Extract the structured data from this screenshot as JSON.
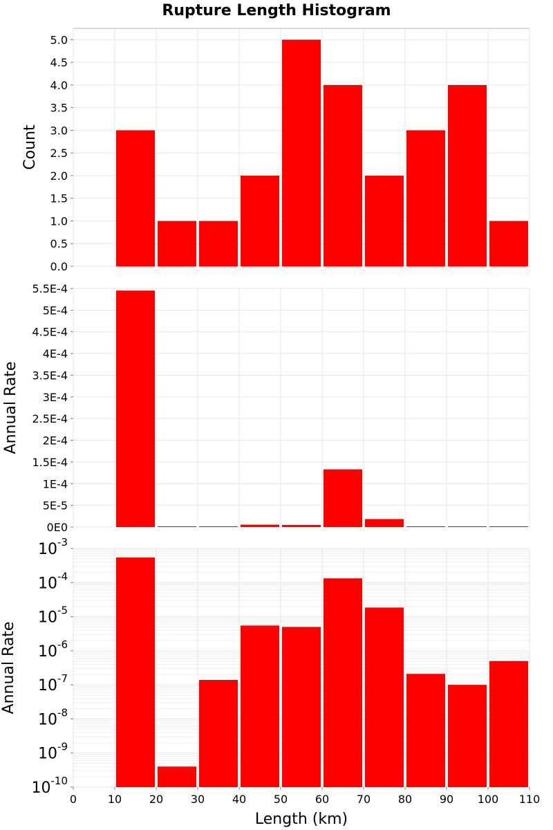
{
  "chart_data": {
    "type": "bar",
    "title": "Rupture Length Histogram",
    "xlabel": "Length (km)",
    "xlim": [
      0,
      110
    ],
    "x_ticks": [
      0,
      10,
      20,
      30,
      40,
      50,
      60,
      70,
      80,
      90,
      100,
      110
    ],
    "categories": [
      "10-20",
      "20-30",
      "30-40",
      "40-50",
      "50-60",
      "60-70",
      "70-80",
      "80-90",
      "90-100",
      "100-110"
    ],
    "bin_starts": [
      10,
      20,
      30,
      40,
      50,
      60,
      70,
      80,
      90,
      100
    ],
    "bin_width": 10,
    "bar_color": "#ff0000",
    "panels": [
      {
        "name": "count",
        "ylabel": "Count",
        "scale": "linear",
        "ylim": [
          0,
          5.25
        ],
        "y_ticks": [
          {
            "value": 0.0,
            "label": "0.0"
          },
          {
            "value": 0.5,
            "label": "0.5"
          },
          {
            "value": 1.0,
            "label": "1.0"
          },
          {
            "value": 1.5,
            "label": "1.5"
          },
          {
            "value": 2.0,
            "label": "2.0"
          },
          {
            "value": 2.5,
            "label": "2.5"
          },
          {
            "value": 3.0,
            "label": "3.0"
          },
          {
            "value": 3.5,
            "label": "3.5"
          },
          {
            "value": 4.0,
            "label": "4.0"
          },
          {
            "value": 4.5,
            "label": "4.5"
          },
          {
            "value": 5.0,
            "label": "5.0"
          }
        ],
        "values": [
          3,
          1,
          1,
          2,
          5,
          4,
          2,
          3,
          4,
          1
        ]
      },
      {
        "name": "rate-linear",
        "ylabel": "Annual Rate",
        "scale": "linear",
        "ylim": [
          0,
          0.00055
        ],
        "y_ticks": [
          {
            "value": 0,
            "label": "0E0"
          },
          {
            "value": 5e-05,
            "label": "5E-5"
          },
          {
            "value": 0.0001,
            "label": "1E-4"
          },
          {
            "value": 0.00015,
            "label": "1.5E-4"
          },
          {
            "value": 0.0002,
            "label": "2E-4"
          },
          {
            "value": 0.00025,
            "label": "2.5E-4"
          },
          {
            "value": 0.0003,
            "label": "3E-4"
          },
          {
            "value": 0.00035,
            "label": "3.5E-4"
          },
          {
            "value": 0.0004,
            "label": "4E-4"
          },
          {
            "value": 0.00045,
            "label": "4.5E-4"
          },
          {
            "value": 0.0005,
            "label": "5E-4"
          },
          {
            "value": 0.00055,
            "label": "5.5E-4"
          }
        ],
        "values": [
          0.000545,
          4e-10,
          1.4e-07,
          5.5e-06,
          5e-06,
          0.000133,
          1.85e-05,
          2.1e-07,
          1e-07,
          5e-07
        ]
      },
      {
        "name": "rate-log",
        "ylabel": "Annual Rate",
        "scale": "log",
        "ylim": [
          1e-10,
          0.001
        ],
        "y_ticks": [
          {
            "exp": -10,
            "base": "10",
            "sup": "-10"
          },
          {
            "exp": -9,
            "base": "10",
            "sup": "-9"
          },
          {
            "exp": -8,
            "base": "10",
            "sup": "-8"
          },
          {
            "exp": -7,
            "base": "10",
            "sup": "-7"
          },
          {
            "exp": -6,
            "base": "10",
            "sup": "-6"
          },
          {
            "exp": -5,
            "base": "10",
            "sup": "-5"
          },
          {
            "exp": -4,
            "base": "10",
            "sup": "-4"
          },
          {
            "exp": -3,
            "base": "10",
            "sup": "-3"
          }
        ],
        "values": [
          0.000545,
          4e-10,
          1.4e-07,
          5.5e-06,
          5e-06,
          0.000133,
          1.85e-05,
          2.1e-07,
          1e-07,
          5e-07
        ]
      }
    ]
  }
}
